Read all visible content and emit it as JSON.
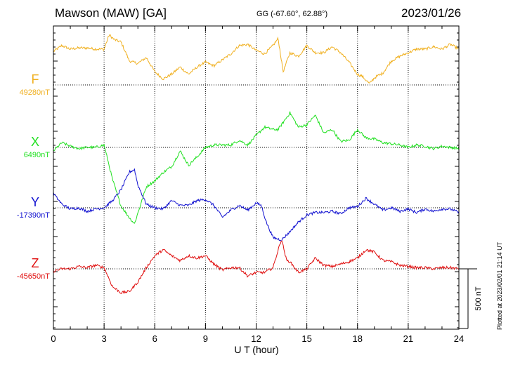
{
  "station": "Mawson (MAW)  [GA]",
  "coords": "GG (-67.60°,  62.88°)",
  "date": "2023/01/26",
  "plotted_note": "Plotted at 2023/02/01 21:14 UT",
  "colors": {
    "F": "#f0b020",
    "X": "#20e020",
    "Y": "#1010d0",
    "Z": "#e01010"
  },
  "chart_data": {
    "type": "line",
    "xlabel": "U T (hour)",
    "xlim": [
      0,
      24
    ],
    "x_ticks": [
      "0",
      "3",
      "6",
      "9",
      "12",
      "15",
      "18",
      "21",
      "24"
    ],
    "scale_bar": {
      "label": "500 nT",
      "value_nT": 500
    },
    "series": [
      {
        "name": "F",
        "baseline_label": "49280nT",
        "baseline_nT": 49280,
        "x": [
          0,
          0.5,
          1,
          1.5,
          2,
          2.5,
          3,
          3.3,
          3.6,
          4,
          4.5,
          5,
          5.5,
          6,
          6.5,
          7,
          7.5,
          8,
          8.5,
          9,
          9.5,
          10,
          10.5,
          11,
          11.5,
          12,
          12.5,
          13,
          13.3,
          13.6,
          14,
          14.5,
          15,
          15.5,
          16,
          16.5,
          17,
          17.5,
          18,
          18.3,
          18.7,
          19,
          19.5,
          20,
          20.5,
          21,
          21.5,
          22,
          22.5,
          23,
          23.5,
          24
        ],
        "values": [
          280,
          330,
          300,
          310,
          310,
          300,
          300,
          420,
          380,
          360,
          200,
          180,
          230,
          110,
          50,
          90,
          150,
          90,
          150,
          190,
          160,
          210,
          260,
          330,
          340,
          290,
          260,
          330,
          390,
          110,
          270,
          240,
          330,
          270,
          270,
          320,
          270,
          190,
          90,
          70,
          10,
          60,
          100,
          200,
          240,
          270,
          300,
          300,
          320,
          300,
          340,
          300
        ]
      },
      {
        "name": "X",
        "baseline_label": "6490nT",
        "baseline_nT": 6490,
        "x": [
          0,
          0.5,
          1,
          1.5,
          2,
          2.5,
          3,
          3.5,
          4,
          4.5,
          4.8,
          5,
          5.5,
          6,
          6.5,
          7,
          7.5,
          8,
          8.5,
          9,
          9.5,
          10,
          10.5,
          11,
          11.5,
          12,
          12.5,
          13,
          13.3,
          14,
          14.5,
          15,
          15.5,
          16,
          16.5,
          17,
          17.5,
          18,
          18.5,
          19,
          19.5,
          20,
          20.5,
          21,
          21.5,
          22,
          22.5,
          23,
          23.5,
          24
        ],
        "values": [
          -30,
          40,
          10,
          -10,
          0,
          0,
          20,
          -270,
          -490,
          -590,
          -640,
          -550,
          -330,
          -280,
          -210,
          -160,
          -30,
          -150,
          -80,
          0,
          20,
          20,
          20,
          60,
          20,
          100,
          170,
          150,
          150,
          290,
          170,
          190,
          270,
          120,
          150,
          50,
          60,
          150,
          80,
          70,
          40,
          30,
          20,
          0,
          20,
          10,
          -10,
          10,
          0,
          -10
        ]
      },
      {
        "name": "Y",
        "baseline_label": "-17390nT",
        "baseline_nT": -17390,
        "x": [
          0,
          0.5,
          1,
          1.5,
          2,
          2.5,
          3,
          3.5,
          4,
          4.5,
          4.8,
          5,
          5.5,
          6,
          6.5,
          7,
          7.5,
          8,
          8.5,
          9,
          9.5,
          10,
          10.5,
          11,
          11.5,
          12,
          12.3,
          12.6,
          13,
          13.5,
          14,
          14.5,
          15,
          15.5,
          16,
          16.5,
          17,
          17.5,
          18,
          18.5,
          19,
          19.5,
          20,
          20.5,
          21,
          21.5,
          22,
          22.5,
          23,
          23.5,
          24
        ],
        "values": [
          120,
          30,
          -10,
          0,
          -30,
          -10,
          0,
          60,
          150,
          300,
          320,
          190,
          30,
          0,
          -10,
          60,
          20,
          20,
          60,
          70,
          20,
          -80,
          -20,
          20,
          -20,
          40,
          20,
          -120,
          -250,
          -270,
          -200,
          -120,
          -60,
          -40,
          -40,
          -30,
          -50,
          0,
          10,
          80,
          30,
          -20,
          0,
          -30,
          -10,
          -40,
          -10,
          -30,
          -10,
          -10,
          -40
        ]
      },
      {
        "name": "Z",
        "baseline_label": "-45650nT",
        "baseline_nT": -45650,
        "x": [
          0,
          0.5,
          1,
          1.5,
          2,
          2.5,
          3,
          3.5,
          4,
          4.5,
          5,
          5.5,
          6,
          6.5,
          7,
          7.5,
          8,
          8.5,
          9,
          9.5,
          10,
          10.5,
          11,
          11.5,
          12,
          12.5,
          13,
          13.2,
          13.5,
          13.8,
          14,
          14.5,
          15,
          15.5,
          16,
          16.5,
          17,
          17.5,
          18,
          18.5,
          19,
          19.5,
          20,
          20.5,
          21,
          21.5,
          22,
          22.5,
          23,
          23.5,
          24
        ],
        "values": [
          -20,
          0,
          0,
          20,
          10,
          30,
          10,
          -150,
          -200,
          -190,
          -110,
          10,
          110,
          160,
          110,
          70,
          110,
          90,
          110,
          40,
          -10,
          10,
          10,
          -60,
          -30,
          -30,
          10,
          110,
          250,
          70,
          60,
          -30,
          0,
          90,
          30,
          20,
          40,
          60,
          90,
          160,
          140,
          70,
          60,
          30,
          20,
          10,
          10,
          0,
          10,
          10,
          0
        ]
      }
    ]
  }
}
